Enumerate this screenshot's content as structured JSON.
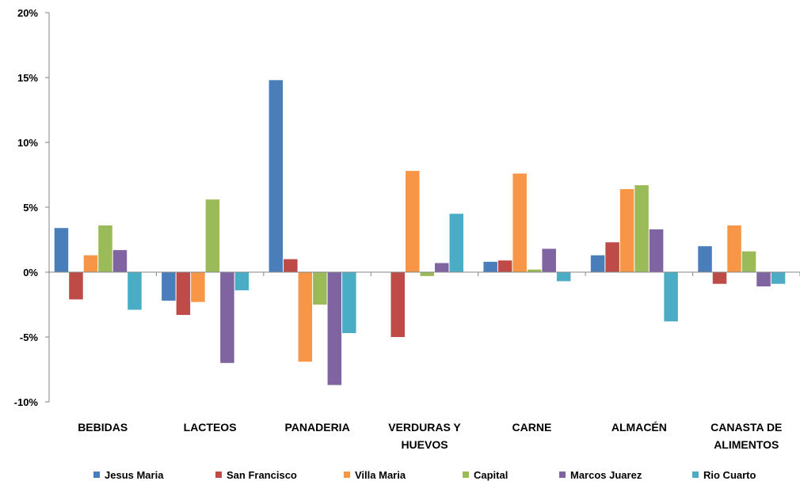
{
  "chart_data": {
    "type": "bar",
    "y_unit": "%",
    "ylim": [
      -10,
      20
    ],
    "y_ticks": [
      "20%",
      "15%",
      "10%",
      "5%",
      "0%",
      "-5%",
      "-10%"
    ],
    "y_tick_values": [
      20,
      15,
      10,
      5,
      0,
      -5,
      -10
    ],
    "grid": false,
    "legend_position": "bottom",
    "categories": [
      [
        "BEBIDAS"
      ],
      [
        "LACTEOS"
      ],
      [
        "PANADERIA"
      ],
      [
        "VERDURAS Y",
        "HUEVOS"
      ],
      [
        "CARNE"
      ],
      [
        "ALMACÉN"
      ],
      [
        "CANASTA DE",
        "ALIMENTOS"
      ]
    ],
    "series": [
      {
        "name": "Jesus Maria",
        "color": "#4a7ebb",
        "values": [
          3.4,
          -2.2,
          14.8,
          0.0,
          0.8,
          1.3,
          2.0
        ]
      },
      {
        "name": "San Francisco",
        "color": "#be4b48",
        "values": [
          -2.1,
          -3.3,
          1.0,
          -5.0,
          0.9,
          2.3,
          -0.9
        ]
      },
      {
        "name": "Villa Maria",
        "color": "#f79646",
        "values": [
          1.3,
          -2.3,
          -6.9,
          7.8,
          7.6,
          6.4,
          3.6
        ]
      },
      {
        "name": "Capital",
        "color": "#9bbb59",
        "values": [
          3.6,
          5.6,
          -2.5,
          -0.3,
          0.2,
          6.7,
          1.6
        ]
      },
      {
        "name": "Marcos Juarez",
        "color": "#8064a2",
        "values": [
          1.7,
          -7.0,
          -8.7,
          0.7,
          1.8,
          3.3,
          -1.1
        ]
      },
      {
        "name": "Rio Cuarto",
        "color": "#4bacc6",
        "values": [
          -2.9,
          -1.4,
          -4.7,
          4.5,
          -0.7,
          -3.8,
          -0.9
        ]
      }
    ]
  }
}
